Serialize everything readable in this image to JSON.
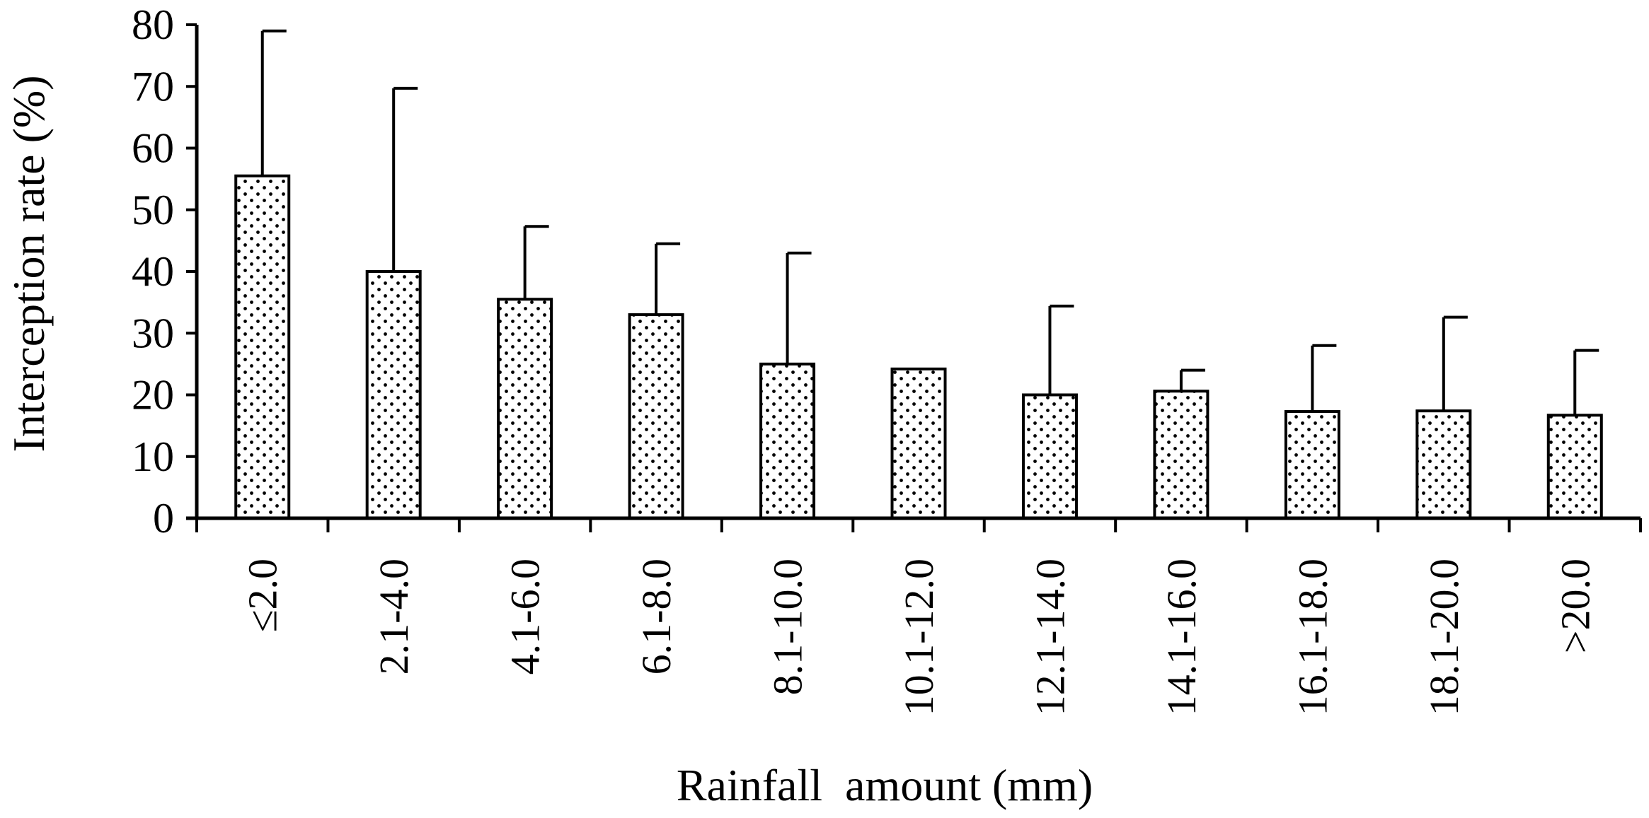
{
  "chart_data": {
    "type": "bar",
    "title": "",
    "xlabel": "Rainfall  amount (mm)",
    "ylabel": "Interception rate (%)",
    "ylim": [
      0,
      80
    ],
    "yticks": [
      "0",
      "10",
      "20",
      "30",
      "40",
      "50",
      "60",
      "70",
      "80"
    ],
    "grid": false,
    "legend": "none",
    "categories": [
      "≤2.0",
      "2.1-4.0",
      "4.1-6.0",
      "6.1-8.0",
      "8.1-10.0",
      "10.1-12.0",
      "12.1-14.0",
      "14.1-16.0",
      "16.1-18.0",
      "18.1-20.0",
      ">20.0"
    ],
    "values": [
      55.5,
      40.0,
      35.5,
      33.0,
      25.0,
      24.2,
      20.0,
      20.6,
      17.3,
      17.4,
      16.7
    ],
    "error_upper": [
      79.0,
      69.7,
      47.3,
      44.5,
      43.0,
      null,
      34.4,
      24.0,
      28.0,
      32.6,
      27.2
    ],
    "bar_pattern": "dotted",
    "colors": {
      "bar_fill": "#ffffff",
      "dot": "#000000",
      "line": "#000000"
    }
  }
}
